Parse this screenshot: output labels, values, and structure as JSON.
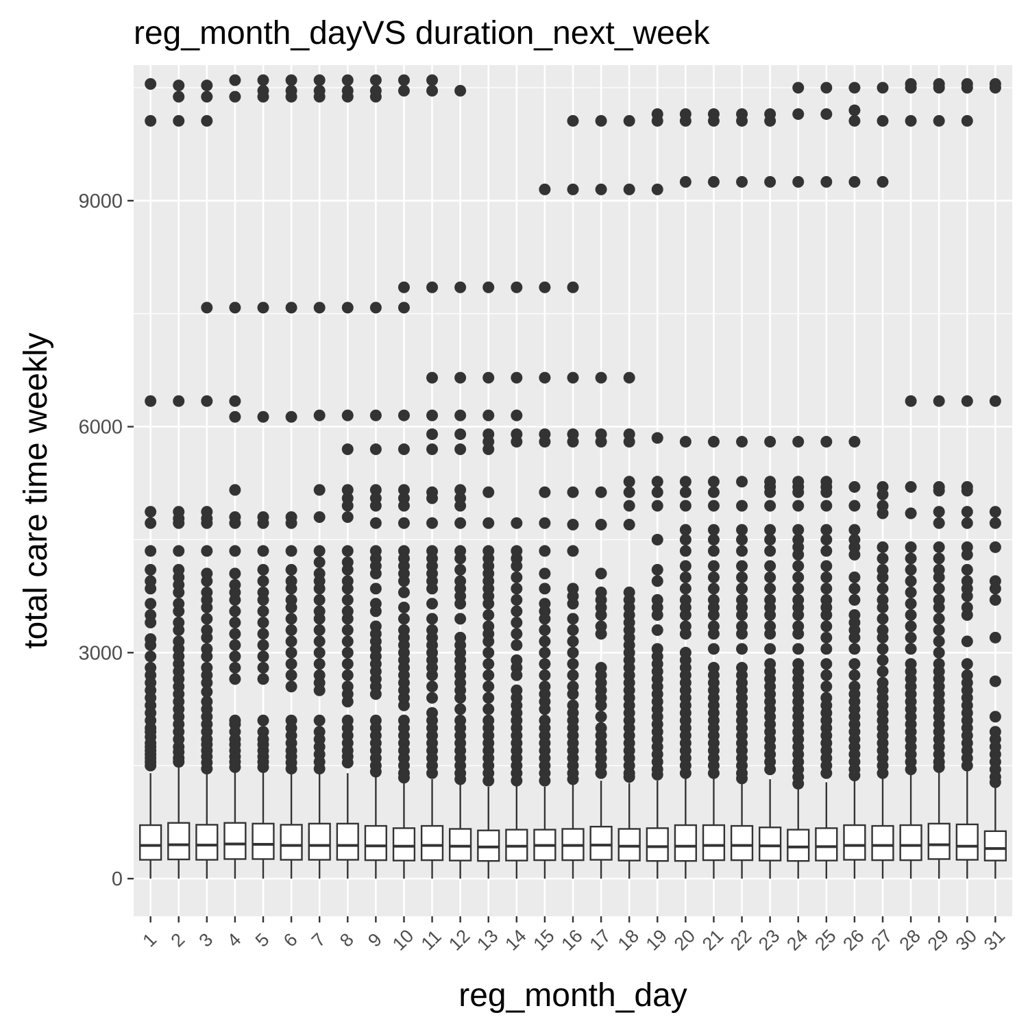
{
  "chart_data": {
    "type": "box",
    "title": "reg_month_dayVS duration_next_week",
    "xlabel": "reg_month_day",
    "ylabel": "total care time weekly",
    "categories": [
      "1",
      "2",
      "3",
      "4",
      "5",
      "6",
      "7",
      "8",
      "9",
      "10",
      "11",
      "12",
      "13",
      "14",
      "15",
      "16",
      "17",
      "18",
      "19",
      "20",
      "21",
      "22",
      "23",
      "24",
      "25",
      "26",
      "27",
      "28",
      "29",
      "30",
      "31"
    ],
    "yticks": [
      0,
      3000,
      6000,
      9000
    ],
    "yticklabels": [
      "0",
      "3000",
      "6000",
      "9000"
    ],
    "ylim": [
      -500,
      10800
    ],
    "grid": true,
    "panel_background": "#ebebeb",
    "box_fill": "#ffffff",
    "point_color": "#333333",
    "boxes": [
      {
        "q1": 250,
        "median": 440,
        "q3": 710,
        "whisker_low": 0,
        "whisker_high": 1400
      },
      {
        "q1": 255,
        "median": 450,
        "q3": 740,
        "whisker_low": 0,
        "whisker_high": 1480
      },
      {
        "q1": 250,
        "median": 445,
        "q3": 715,
        "whisker_low": 0,
        "whisker_high": 1400
      },
      {
        "q1": 260,
        "median": 460,
        "q3": 740,
        "whisker_low": 0,
        "whisker_high": 1420
      },
      {
        "q1": 260,
        "median": 455,
        "q3": 730,
        "whisker_low": 0,
        "whisker_high": 1430
      },
      {
        "q1": 250,
        "median": 440,
        "q3": 715,
        "whisker_low": 0,
        "whisker_high": 1400
      },
      {
        "q1": 250,
        "median": 440,
        "q3": 730,
        "whisker_low": 0,
        "whisker_high": 1420
      },
      {
        "q1": 250,
        "median": 440,
        "q3": 730,
        "whisker_low": 0,
        "whisker_high": 1400
      },
      {
        "q1": 245,
        "median": 435,
        "q3": 700,
        "whisker_low": 0,
        "whisker_high": 1350
      },
      {
        "q1": 240,
        "median": 430,
        "q3": 670,
        "whisker_low": 0,
        "whisker_high": 1290
      },
      {
        "q1": 245,
        "median": 440,
        "q3": 700,
        "whisker_low": 0,
        "whisker_high": 1320
      },
      {
        "q1": 240,
        "median": 430,
        "q3": 660,
        "whisker_low": 0,
        "whisker_high": 1270
      },
      {
        "q1": 235,
        "median": 420,
        "q3": 640,
        "whisker_low": 0,
        "whisker_high": 1220
      },
      {
        "q1": 240,
        "median": 430,
        "q3": 650,
        "whisker_low": 0,
        "whisker_high": 1230
      },
      {
        "q1": 245,
        "median": 440,
        "q3": 650,
        "whisker_low": 0,
        "whisker_high": 1220
      },
      {
        "q1": 245,
        "median": 440,
        "q3": 660,
        "whisker_low": 0,
        "whisker_high": 1250
      },
      {
        "q1": 250,
        "median": 445,
        "q3": 690,
        "whisker_low": 0,
        "whisker_high": 1300
      },
      {
        "q1": 240,
        "median": 430,
        "q3": 660,
        "whisker_low": 0,
        "whisker_high": 1270
      },
      {
        "q1": 235,
        "median": 425,
        "q3": 670,
        "whisker_low": 0,
        "whisker_high": 1300
      },
      {
        "q1": 235,
        "median": 430,
        "q3": 710,
        "whisker_low": 0,
        "whisker_high": 1380
      },
      {
        "q1": 245,
        "median": 440,
        "q3": 710,
        "whisker_low": 0,
        "whisker_high": 1380
      },
      {
        "q1": 245,
        "median": 440,
        "q3": 700,
        "whisker_low": 0,
        "whisker_high": 1360
      },
      {
        "q1": 240,
        "median": 435,
        "q3": 680,
        "whisker_low": 0,
        "whisker_high": 1320
      },
      {
        "q1": 235,
        "median": 420,
        "q3": 650,
        "whisker_low": 0,
        "whisker_high": 1250
      },
      {
        "q1": 240,
        "median": 425,
        "q3": 670,
        "whisker_low": 0,
        "whisker_high": 1280
      },
      {
        "q1": 250,
        "median": 440,
        "q3": 710,
        "whisker_low": 0,
        "whisker_high": 1360
      },
      {
        "q1": 245,
        "median": 440,
        "q3": 700,
        "whisker_low": 0,
        "whisker_high": 1370
      },
      {
        "q1": 245,
        "median": 440,
        "q3": 710,
        "whisker_low": 0,
        "whisker_high": 1380
      },
      {
        "q1": 260,
        "median": 450,
        "q3": 730,
        "whisker_low": 0,
        "whisker_high": 1420
      },
      {
        "q1": 250,
        "median": 430,
        "q3": 720,
        "whisker_low": 0,
        "whisker_high": 1430
      },
      {
        "q1": 240,
        "median": 400,
        "q3": 630,
        "whisker_low": 0,
        "whisker_high": 1220
      }
    ],
    "outliers": [
      [
        10550,
        10060,
        6340,
        4870,
        4720,
        4350,
        4100,
        3950,
        3850,
        3650,
        3500,
        3400,
        3180,
        3100,
        2950,
        2800,
        2700,
        2600,
        2500,
        2400,
        2300,
        2200,
        2100,
        2000,
        1950,
        1880,
        1800,
        1750,
        1700,
        1650,
        1600,
        1550,
        1500
      ],
      [
        10530,
        10380,
        10060,
        6340,
        4870,
        4780,
        4720,
        4350,
        4100,
        4000,
        3900,
        3800,
        3650,
        3550,
        3400,
        3300,
        3150,
        3050,
        2950,
        2850,
        2750,
        2650,
        2550,
        2450,
        2350,
        2250,
        2150,
        2050,
        1950,
        1850,
        1750,
        1680,
        1600,
        1550
      ],
      [
        10530,
        10380,
        10060,
        7580,
        6340,
        4870,
        4780,
        4720,
        4350,
        4050,
        3950,
        3800,
        3700,
        3600,
        3450,
        3300,
        3200,
        3050,
        2950,
        2800,
        2700,
        2600,
        2480,
        2350,
        2250,
        2150,
        2050,
        1950,
        1850,
        1780,
        1700,
        1620,
        1540,
        1460
      ],
      [
        10600,
        10380,
        7580,
        6340,
        6130,
        5160,
        4800,
        4720,
        4350,
        4050,
        3900,
        3800,
        3700,
        3550,
        3400,
        3250,
        3100,
        2950,
        2800,
        2650,
        2100,
        2050,
        1950,
        1850,
        1780,
        1700,
        1620,
        1550,
        1480
      ],
      [
        10600,
        10460,
        10380,
        7580,
        6130,
        4800,
        4720,
        4350,
        4100,
        3950,
        3800,
        3700,
        3550,
        3400,
        3250,
        3100,
        2950,
        2800,
        2650,
        2100,
        1950,
        1850,
        1780,
        1700,
        1620,
        1550,
        1480
      ],
      [
        10600,
        10460,
        10380,
        7580,
        6130,
        4800,
        4720,
        4350,
        4100,
        3950,
        3850,
        3700,
        3600,
        3450,
        3300,
        3150,
        3000,
        2850,
        2700,
        2550,
        2100,
        2000,
        1900,
        1800,
        1700,
        1620,
        1540,
        1460
      ],
      [
        10600,
        10460,
        10380,
        7580,
        6150,
        5160,
        4800,
        4350,
        4200,
        4050,
        3950,
        3850,
        3700,
        3550,
        3450,
        3300,
        3150,
        3000,
        2850,
        2700,
        2600,
        2500,
        2100,
        1950,
        1850,
        1750,
        1650,
        1550,
        1460
      ],
      [
        10600,
        10460,
        10380,
        7580,
        6150,
        5700,
        5160,
        5050,
        4950,
        4800,
        4350,
        4200,
        4100,
        3950,
        3850,
        3700,
        3550,
        3450,
        3300,
        3150,
        3000,
        2850,
        2700,
        2550,
        2450,
        2350,
        2100,
        2000,
        1900,
        1800,
        1700,
        1620,
        1540
      ],
      [
        10600,
        10460,
        10380,
        7580,
        6150,
        5700,
        5160,
        5050,
        4950,
        4720,
        4350,
        4250,
        4150,
        4050,
        3850,
        3650,
        3550,
        3350,
        3250,
        3150,
        3050,
        2950,
        2850,
        2750,
        2650,
        2550,
        2450,
        2100,
        2000,
        1900,
        1800,
        1700,
        1600,
        1500,
        1420
      ],
      [
        10600,
        10460,
        7850,
        7580,
        6150,
        5700,
        5160,
        5050,
        4950,
        4720,
        4350,
        4250,
        4150,
        4050,
        3950,
        3800,
        3600,
        3450,
        3300,
        3200,
        3100,
        3000,
        2900,
        2800,
        2700,
        2600,
        2500,
        2400,
        2300,
        2100,
        2000,
        1900,
        1800,
        1700,
        1600,
        1500,
        1400,
        1340
      ],
      [
        10600,
        10460,
        7850,
        6650,
        6150,
        5900,
        5700,
        5130,
        5050,
        4720,
        4350,
        4250,
        4150,
        4050,
        3950,
        3850,
        3650,
        3450,
        3300,
        3200,
        3100,
        3000,
        2900,
        2800,
        2700,
        2550,
        2400,
        2200,
        2100,
        2000,
        1900,
        1800,
        1700,
        1600,
        1500,
        1400
      ],
      [
        10460,
        7850,
        6650,
        6150,
        5900,
        5700,
        5160,
        5050,
        4950,
        4720,
        4350,
        4250,
        4100,
        3950,
        3850,
        3750,
        3650,
        3450,
        3200,
        3100,
        3000,
        2900,
        2800,
        2700,
        2600,
        2500,
        2400,
        2250,
        2100,
        2000,
        1900,
        1800,
        1700,
        1600,
        1500,
        1400,
        1320
      ],
      [
        7850,
        6650,
        6150,
        5900,
        5800,
        5700,
        5130,
        4720,
        4350,
        4250,
        4150,
        4050,
        3950,
        3850,
        3750,
        3650,
        3500,
        3350,
        3250,
        3150,
        3000,
        2850,
        2700,
        2550,
        2400,
        2250,
        2100,
        2000,
        1900,
        1800,
        1700,
        1600,
        1500,
        1400,
        1300
      ],
      [
        7850,
        6650,
        6150,
        5900,
        5800,
        4720,
        4350,
        4250,
        4150,
        4000,
        3850,
        3700,
        3550,
        3400,
        3250,
        3100,
        2900,
        2800,
        2700,
        2500,
        2400,
        2300,
        2200,
        2100,
        2000,
        1900,
        1800,
        1700,
        1600,
        1500,
        1400,
        1300
      ],
      [
        9150,
        7850,
        6650,
        5900,
        5800,
        5130,
        4720,
        4350,
        4050,
        3850,
        3650,
        3550,
        3450,
        3300,
        3150,
        3000,
        2850,
        2700,
        2550,
        2450,
        2350,
        2250,
        2100,
        2000,
        1900,
        1800,
        1700,
        1600,
        1500,
        1400,
        1300
      ],
      [
        10060,
        9150,
        7850,
        6650,
        5900,
        5800,
        5130,
        4700,
        4350,
        3850,
        3750,
        3650,
        3450,
        3300,
        3150,
        3000,
        2850,
        2700,
        2550,
        2450,
        2300,
        2200,
        2100,
        2000,
        1900,
        1800,
        1700,
        1600,
        1500,
        1400,
        1320
      ],
      [
        10060,
        9150,
        6650,
        5900,
        5800,
        5130,
        4700,
        4050,
        3800,
        3700,
        3600,
        3500,
        3350,
        3250,
        2800,
        2700,
        2600,
        2500,
        2400,
        2300,
        2150,
        2000,
        1900,
        1800,
        1700,
        1600,
        1500,
        1400
      ],
      [
        10060,
        9150,
        6650,
        5900,
        5800,
        5270,
        5130,
        4950,
        4700,
        3800,
        3700,
        3600,
        3500,
        3400,
        3300,
        3200,
        3100,
        3000,
        2900,
        2800,
        2700,
        2600,
        2500,
        2400,
        2300,
        2200,
        2100,
        2000,
        1900,
        1800,
        1700,
        1600,
        1500,
        1400,
        1350
      ],
      [
        10150,
        10060,
        9150,
        5850,
        5270,
        5130,
        4950,
        4500,
        4100,
        3950,
        3700,
        3600,
        3500,
        3300,
        3050,
        2950,
        2850,
        2750,
        2650,
        2550,
        2450,
        2350,
        2250,
        2150,
        2050,
        1950,
        1850,
        1750,
        1650,
        1550,
        1450,
        1380
      ],
      [
        10150,
        10060,
        9250,
        5800,
        5270,
        5130,
        4950,
        4630,
        4500,
        4350,
        4150,
        4000,
        3850,
        3700,
        3600,
        3500,
        3350,
        3250,
        3000,
        2900,
        2800,
        2700,
        2600,
        2500,
        2400,
        2300,
        2200,
        2100,
        2000,
        1900,
        1800,
        1700,
        1600,
        1500,
        1400
      ],
      [
        10150,
        10060,
        9250,
        5800,
        5270,
        5130,
        4950,
        4630,
        4500,
        4350,
        4150,
        4000,
        3850,
        3700,
        3600,
        3500,
        3350,
        3250,
        3050,
        2800,
        2700,
        2600,
        2500,
        2400,
        2300,
        2200,
        2100,
        2000,
        1900,
        1800,
        1700,
        1600,
        1500,
        1400
      ],
      [
        10150,
        10060,
        9250,
        5800,
        5270,
        4950,
        4630,
        4500,
        4350,
        4150,
        4000,
        3850,
        3700,
        3600,
        3500,
        3350,
        3250,
        3050,
        2800,
        2700,
        2600,
        2500,
        2400,
        2300,
        2200,
        2100,
        2000,
        1900,
        1800,
        1700,
        1600,
        1500,
        1400,
        1330
      ],
      [
        10150,
        10060,
        9250,
        5800,
        5270,
        5200,
        5130,
        4950,
        4630,
        4500,
        4350,
        4150,
        4000,
        3850,
        3700,
        3600,
        3500,
        3350,
        3250,
        3050,
        2850,
        2750,
        2650,
        2550,
        2450,
        2350,
        2250,
        2150,
        2050,
        1950,
        1850,
        1750,
        1650,
        1550,
        1450
      ],
      [
        10500,
        10150,
        9250,
        5800,
        5270,
        5200,
        5130,
        4950,
        4630,
        4500,
        4400,
        4300,
        4150,
        4000,
        3850,
        3700,
        3600,
        3500,
        3350,
        3250,
        3050,
        2850,
        2750,
        2650,
        2550,
        2450,
        2350,
        2250,
        2150,
        2050,
        1950,
        1850,
        1750,
        1650,
        1550,
        1450,
        1350,
        1260
      ],
      [
        10500,
        10150,
        9250,
        5800,
        5270,
        5200,
        5130,
        4950,
        4630,
        4500,
        4350,
        4150,
        4000,
        3850,
        3700,
        3600,
        3500,
        3350,
        3200,
        3050,
        2850,
        2700,
        2550,
        2400,
        2300,
        2200,
        2100,
        2000,
        1900,
        1800,
        1700,
        1600,
        1500,
        1400
      ],
      [
        10500,
        10200,
        10060,
        9250,
        5800,
        5200,
        4950,
        4630,
        4500,
        4400,
        4300,
        4000,
        3850,
        3700,
        3500,
        3400,
        3300,
        3200,
        3050,
        2850,
        2700,
        2550,
        2450,
        2350,
        2250,
        2150,
        2050,
        1950,
        1850,
        1750,
        1650,
        1550,
        1450,
        1370
      ],
      [
        10500,
        10060,
        9250,
        5200,
        5100,
        4950,
        4850,
        4400,
        4250,
        4100,
        4000,
        3850,
        3700,
        3600,
        3450,
        3300,
        3200,
        3050,
        2900,
        2750,
        2600,
        2500,
        2400,
        2300,
        2200,
        2100,
        2000,
        1900,
        1800,
        1700,
        1600,
        1500,
        1400
      ],
      [
        10550,
        10500,
        10060,
        6340,
        5200,
        4850,
        4400,
        4250,
        4100,
        3950,
        3800,
        3650,
        3500,
        3350,
        3200,
        3050,
        2850,
        2750,
        2650,
        2550,
        2450,
        2350,
        2250,
        2150,
        2050,
        1950,
        1850,
        1750,
        1650,
        1550,
        1450
      ],
      [
        10550,
        10500,
        10060,
        6340,
        5200,
        5150,
        4870,
        4720,
        4400,
        4250,
        4100,
        4000,
        3850,
        3700,
        3600,
        3450,
        3300,
        3150,
        3000,
        2850,
        2750,
        2650,
        2550,
        2450,
        2350,
        2250,
        2150,
        2050,
        1950,
        1850,
        1750,
        1650,
        1550,
        1480
      ],
      [
        10550,
        10500,
        10060,
        6340,
        5200,
        5150,
        4870,
        4720,
        4400,
        4300,
        4100,
        3950,
        3850,
        3750,
        3600,
        3500,
        3150,
        2850,
        2700,
        2600,
        2500,
        2400,
        2300,
        2200,
        2100,
        2000,
        1900,
        1800,
        1700,
        1600,
        1500
      ],
      [
        10550,
        10500,
        6340,
        4870,
        4720,
        4400,
        3950,
        3850,
        3700,
        3200,
        2620,
        2150,
        1950,
        1850,
        1750,
        1650,
        1550,
        1450,
        1350,
        1280
      ]
    ]
  }
}
